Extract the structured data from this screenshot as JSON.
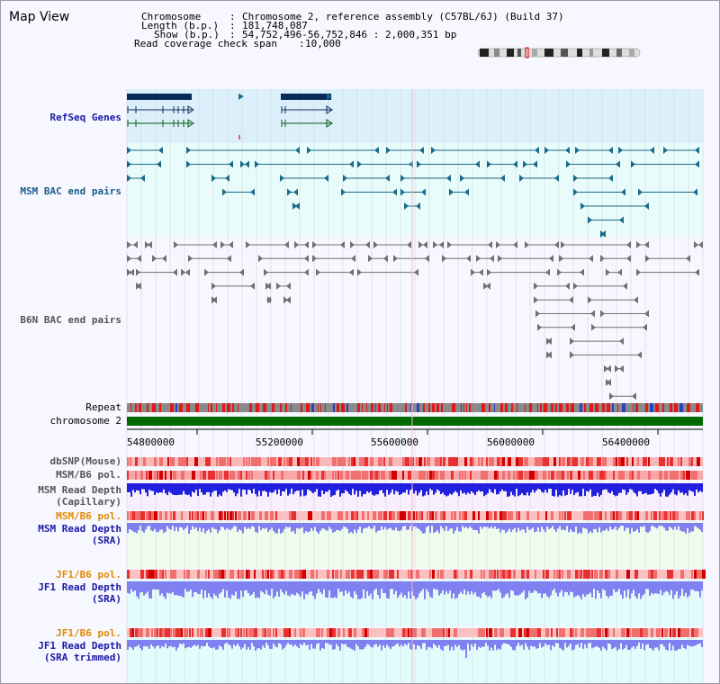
{
  "page": {
    "title": "Map View"
  },
  "info": {
    "chromosome_key": "Chromosome",
    "chromosome_val": "Chromosome 2, reference assembly (C57BL/6J) (Build 37)",
    "length_key": "Length (b.p.)",
    "length_val": "181,748,087",
    "show_key": "Show (b.p.)",
    "show_val": "54,752,496-56,752,846 : 2,000,351 bp",
    "coverage_key": "Read coverage check span",
    "coverage_val": "10,000"
  },
  "tracks": {
    "refseq": "RefSeq Genes",
    "msm_bac": "MSM BAC end pairs",
    "b6n_bac": "B6N BAC end pairs",
    "repeat": "Repeat",
    "chromosome": "chromosome 2",
    "dbsnp": "dbSNP(Mouse)",
    "msm_b6_pol_1": "MSM/B6 pol.",
    "msm_read_depth_cap_1": "MSM Read Depth",
    "msm_read_depth_cap_2": "(Capillary)",
    "msm_b6_pol_2": "MSM/B6 pol.",
    "msm_read_depth_sra_1": "MSM Read Depth",
    "msm_read_depth_sra_2": "(SRA)",
    "jf1_b6_pol_1": "JF1/B6 pol.",
    "jf1_read_depth_sra_1": "JF1 Read Depth",
    "jf1_read_depth_sra_2": "(SRA)",
    "jf1_b6_pol_2": "JF1/B6 pol.",
    "jf1_read_depth_trim_1": "JF1 Read Depth",
    "jf1_read_depth_trim_2": "(SRA trimmed)"
  },
  "axis": {
    "ticks": [
      "54800000",
      "55200000",
      "55600000",
      "56000000",
      "56400000"
    ]
  },
  "colors": {
    "refseq_bg": "#dcf0fc",
    "bac_bg": "#e8fcfc",
    "depth_bg": "#f8eefc",
    "sra_bg": "#eefcee",
    "jf1_bg": "#e2fcfc",
    "chromosome_bar": "#006a00",
    "gene_dark": "#0a2a5a",
    "msm_feature": "#1a6a8a",
    "b6n_feature": "#707070",
    "capillary_depth": "#2020e0",
    "sra_depth": "#8080f0"
  },
  "icons": [
    "chromosome-ideogram-icon"
  ]
}
